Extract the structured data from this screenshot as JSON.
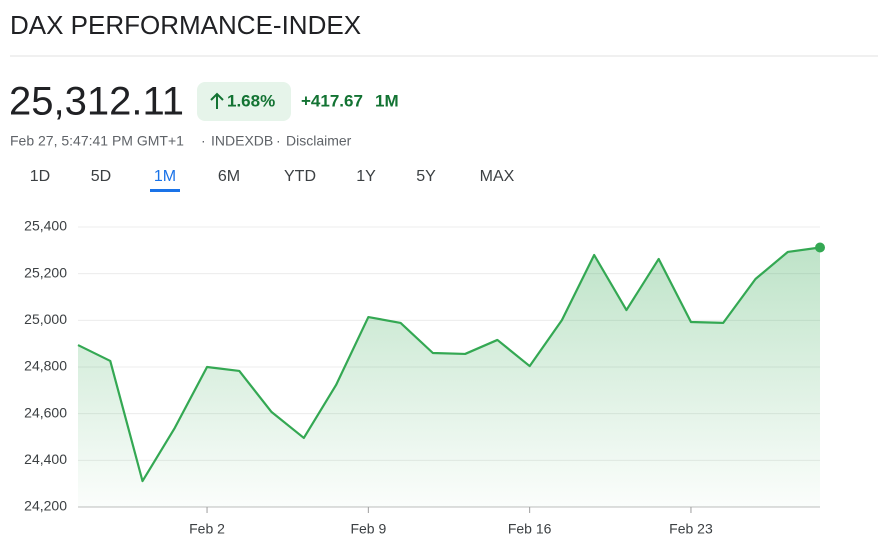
{
  "header": {
    "title": "DAX PERFORMANCE-INDEX",
    "price": "25,312.11",
    "change_percent": "1.68%",
    "change": "+417.67",
    "period": "1M",
    "timestamp": "Feb 27, 5:47:41 PM GMT+1",
    "source": "INDEXDB",
    "disclaimer": "Disclaimer",
    "separator": "·"
  },
  "tabs": [
    "1D",
    "5D",
    "1M",
    "6M",
    "YTD",
    "1Y",
    "5Y",
    "MAX"
  ],
  "selected_tab": "1M",
  "chart_data": {
    "type": "line",
    "color": "#34a853",
    "area": true,
    "grid": true,
    "categories": [
      null,
      null,
      null,
      null,
      "Feb 2",
      null,
      null,
      null,
      null,
      "Feb 9",
      null,
      null,
      null,
      null,
      "Feb 16",
      null,
      null,
      null,
      null,
      "Feb 23",
      null,
      null,
      null,
      null
    ],
    "values": [
      24894,
      24826,
      24311,
      24539,
      24800,
      24783,
      24607,
      24496,
      24723,
      25014,
      24989,
      24860,
      24856,
      24916,
      24804,
      25001,
      25280,
      25044,
      25263,
      24993,
      24989,
      25177,
      25293,
      25312.11
    ],
    "ylim": [
      24200,
      25400
    ],
    "yticks": [
      {
        "value": 24200,
        "label": "24,200"
      },
      {
        "value": 24400,
        "label": "24,400"
      },
      {
        "value": 24600,
        "label": "24,600"
      },
      {
        "value": 24800,
        "label": "24,800"
      },
      {
        "value": 25000,
        "label": "25,000"
      },
      {
        "value": 25200,
        "label": "25,200"
      },
      {
        "value": 25400,
        "label": "25,400"
      }
    ]
  }
}
